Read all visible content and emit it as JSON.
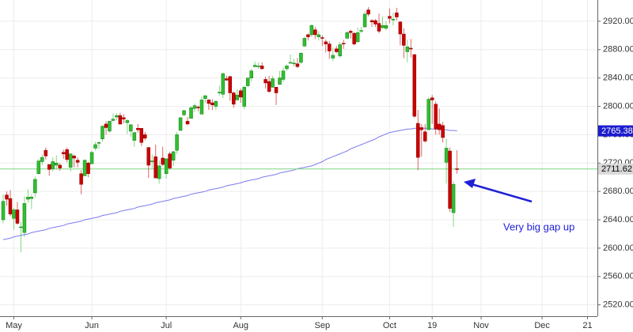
{
  "chart_data": {
    "type": "candlestick",
    "annotation": "Very big gap up",
    "up_color": "#2fbf2f",
    "down_color": "#cc0000",
    "ylim": [
      2504,
      2950
    ],
    "yticks": [
      {
        "value": 2520,
        "label": "2520.00"
      },
      {
        "value": 2560,
        "label": "2560.00"
      },
      {
        "value": 2600,
        "label": "2600.00"
      },
      {
        "value": 2640,
        "label": "2640.00"
      },
      {
        "value": 2680,
        "label": "2680.00"
      },
      {
        "value": 2720,
        "label": "2720.00"
      },
      {
        "value": 2760,
        "label": "2760.00"
      },
      {
        "value": 2800,
        "label": "2800.00"
      },
      {
        "value": 2840,
        "label": "2840.00"
      },
      {
        "value": 2880,
        "label": "2880.00"
      },
      {
        "value": 2920,
        "label": "2920.00"
      }
    ],
    "xlim": [
      -0.9,
      167.6
    ],
    "xticks": [
      {
        "value": 3,
        "label": "May"
      },
      {
        "value": 25,
        "label": "Jun"
      },
      {
        "value": 46,
        "label": "Jul"
      },
      {
        "value": 67,
        "label": "Aug"
      },
      {
        "value": 90,
        "label": "Sep"
      },
      {
        "value": 109,
        "label": "Oct"
      },
      {
        "value": 121,
        "label": "19"
      },
      {
        "value": 134.8,
        "label": "Nov"
      },
      {
        "value": 152,
        "label": "Dec"
      },
      {
        "value": 164.8,
        "label": "21"
      }
    ],
    "grid": true,
    "last_price": {
      "value": 2711.62,
      "label": "2711.62",
      "color": "#7ed67e"
    },
    "moving_average": {
      "color": "#7b7bf0",
      "last": {
        "value": 2765.38,
        "label": "2765.38"
      },
      "values": [
        2612,
        2613,
        2614,
        2616,
        2617,
        2618,
        2619,
        2620,
        2622,
        2623,
        2624,
        2625,
        2626,
        2628,
        2629,
        2630,
        2631,
        2632,
        2634,
        2635,
        2636,
        2637,
        2638,
        2640,
        2641,
        2642,
        2643,
        2644,
        2646,
        2647,
        2648,
        2649,
        2650,
        2652,
        2653,
        2654,
        2655,
        2656,
        2658,
        2659,
        2660,
        2661,
        2662,
        2664,
        2665,
        2666,
        2667,
        2668,
        2670,
        2671,
        2672,
        2673,
        2674,
        2676,
        2677,
        2678,
        2679,
        2680,
        2682,
        2683,
        2684,
        2685,
        2686,
        2688,
        2689,
        2690,
        2691,
        2692,
        2694,
        2695,
        2696,
        2697,
        2698,
        2700,
        2701,
        2702,
        2703,
        2704,
        2706,
        2707,
        2708,
        2709,
        2710,
        2712,
        2713,
        2714,
        2715,
        2716,
        2718,
        2720,
        2722,
        2725,
        2727,
        2729,
        2731,
        2733,
        2735,
        2737,
        2740,
        2742,
        2744,
        2746,
        2748,
        2750,
        2752,
        2754,
        2757,
        2759,
        2761,
        2763,
        2764,
        2765,
        2766,
        2767,
        2768,
        2768,
        2769,
        2769,
        2769,
        2769,
        2769,
        2768,
        2768,
        2768,
        2767,
        2767,
        2766,
        2766,
        2765.38
      ]
    },
    "open": [
      2640,
      2675,
      2670,
      2642,
      2654,
      2629,
      2622,
      2669,
      2670,
      2678,
      2705,
      2722,
      2738,
      2718,
      2712,
      2717,
      2717,
      2735,
      2739,
      2714,
      2730,
      2724,
      2705,
      2702,
      2720,
      2719,
      2741,
      2748,
      2754,
      2775,
      2765,
      2780,
      2785,
      2787,
      2784,
      2777,
      2765,
      2752,
      2769,
      2769,
      2760,
      2742,
      2722,
      2729,
      2698,
      2727,
      2705,
      2733,
      2724,
      2738,
      2766,
      2788,
      2779,
      2783,
      2797,
      2799,
      2789,
      2811,
      2809,
      2805,
      2800,
      2820,
      2817,
      2839,
      2842,
      2819,
      2809,
      2822,
      2800,
      2829,
      2840,
      2856,
      2856,
      2857,
      2838,
      2835,
      2827,
      2827,
      2831,
      2838,
      2853,
      2861,
      2860,
      2860,
      2862,
      2885,
      2901,
      2901,
      2908,
      2898,
      2897,
      2891,
      2888,
      2868,
      2881,
      2871,
      2889,
      2896,
      2906,
      2903,
      2891,
      2906,
      2912,
      2936,
      2921,
      2921,
      2917,
      2911,
      2910,
      2927,
      2923,
      2932,
      2919,
      2902,
      2877,
      2882,
      2873,
      2776,
      2770,
      2764,
      2767,
      2812,
      2803,
      2775,
      2773,
      2721,
      2737,
      2650,
      2712
    ],
    "high": [
      2676,
      2680,
      2682,
      2657,
      2665,
      2637,
      2673,
      2683,
      2676,
      2701,
      2726,
      2732,
      2742,
      2718,
      2728,
      2731,
      2720,
      2739,
      2742,
      2733,
      2732,
      2728,
      2710,
      2725,
      2722,
      2737,
      2750,
      2751,
      2773,
      2779,
      2779,
      2790,
      2790,
      2791,
      2789,
      2782,
      2775,
      2764,
      2775,
      2769,
      2764,
      2742,
      2732,
      2746,
      2724,
      2743,
      2727,
      2736,
      2737,
      2764,
      2784,
      2795,
      2785,
      2800,
      2804,
      2801,
      2814,
      2816,
      2810,
      2810,
      2809,
      2829,
      2848,
      2843,
      2843,
      2821,
      2824,
      2825,
      2829,
      2840,
      2853,
      2863,
      2862,
      2862,
      2842,
      2843,
      2843,
      2827,
      2850,
      2855,
      2859,
      2873,
      2867,
      2868,
      2876,
      2898,
      2903,
      2916,
      2912,
      2906,
      2900,
      2894,
      2892,
      2883,
      2885,
      2891,
      2894,
      2906,
      2908,
      2905,
      2911,
      2912,
      2934,
      2940,
      2923,
      2923,
      2931,
      2927,
      2920,
      2938,
      2932,
      2939,
      2920,
      2910,
      2894,
      2895,
      2874,
      2795,
      2775,
      2775,
      2813,
      2816,
      2807,
      2797,
      2778,
      2754,
      2742,
      2694,
      2738
    ],
    "low": [
      2635,
      2660,
      2645,
      2626,
      2633,
      2594,
      2616,
      2664,
      2655,
      2672,
      2704,
      2717,
      2725,
      2702,
      2708,
      2711,
      2709,
      2726,
      2721,
      2708,
      2714,
      2714,
      2676,
      2702,
      2700,
      2719,
      2738,
      2740,
      2750,
      2760,
      2763,
      2779,
      2780,
      2774,
      2776,
      2761,
      2757,
      2743,
      2763,
      2744,
      2752,
      2699,
      2712,
      2699,
      2691,
      2716,
      2698,
      2711,
      2716,
      2733,
      2766,
      2786,
      2774,
      2783,
      2792,
      2793,
      2789,
      2805,
      2795,
      2795,
      2795,
      2815,
      2812,
      2836,
      2808,
      2798,
      2809,
      2805,
      2796,
      2827,
      2835,
      2855,
      2853,
      2852,
      2825,
      2819,
      2826,
      2802,
      2831,
      2834,
      2850,
      2860,
      2856,
      2854,
      2860,
      2884,
      2893,
      2898,
      2895,
      2893,
      2885,
      2876,
      2867,
      2864,
      2875,
      2869,
      2881,
      2896,
      2896,
      2886,
      2890,
      2903,
      2912,
      2927,
      2912,
      2912,
      2903,
      2909,
      2907,
      2917,
      2914,
      2921,
      2886,
      2868,
      2862,
      2869,
      2784,
      2710,
      2729,
      2749,
      2767,
      2775,
      2760,
      2760,
      2749,
      2691,
      2651,
      2630,
      2705
    ],
    "close": [
      2666,
      2669,
      2648,
      2654,
      2635,
      2630,
      2663,
      2672,
      2672,
      2697,
      2723,
      2728,
      2730,
      2711,
      2722,
      2720,
      2713,
      2733,
      2725,
      2733,
      2727,
      2721,
      2690,
      2724,
      2705,
      2735,
      2746,
      2749,
      2772,
      2770,
      2779,
      2782,
      2787,
      2775,
      2782,
      2780,
      2774,
      2763,
      2767,
      2749,
      2755,
      2717,
      2723,
      2699,
      2716,
      2718,
      2726,
      2713,
      2736,
      2760,
      2784,
      2794,
      2775,
      2798,
      2801,
      2798,
      2809,
      2815,
      2804,
      2802,
      2807,
      2820,
      2846,
      2837,
      2819,
      2803,
      2816,
      2813,
      2827,
      2840,
      2850,
      2858,
      2857,
      2853,
      2833,
      2821,
      2839,
      2819,
      2840,
      2850,
      2857,
      2862,
      2861,
      2856,
      2875,
      2896,
      2898,
      2914,
      2901,
      2901,
      2896,
      2888,
      2878,
      2872,
      2877,
      2887,
      2888,
      2904,
      2904,
      2888,
      2904,
      2907,
      2930,
      2930,
      2919,
      2916,
      2906,
      2914,
      2914,
      2924,
      2923,
      2926,
      2902,
      2886,
      2884,
      2881,
      2786,
      2728,
      2767,
      2751,
      2810,
      2809,
      2768,
      2767,
      2756,
      2741,
      2656,
      2690,
      2711.62
    ]
  }
}
